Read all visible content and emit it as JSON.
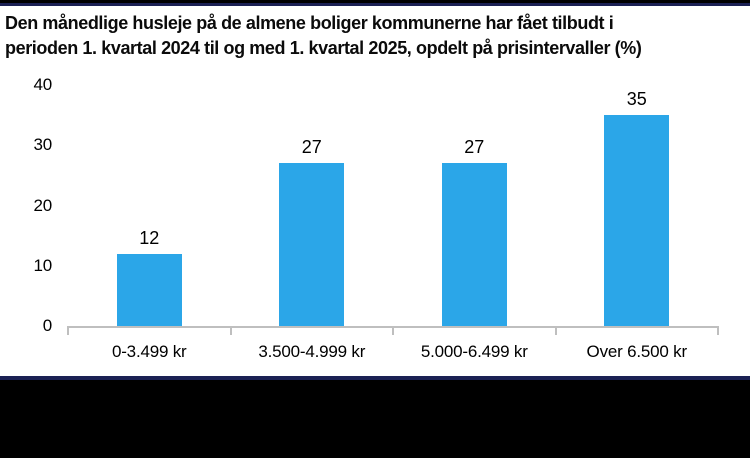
{
  "header": {
    "title_lines": [
      "Den månedlige husleje på de almene boliger kommunerne har fået tilbudt i",
      "perioden 1. kvartal 2024 til og med 1. kvartal 2025, opdelt på prisintervaller (%)"
    ]
  },
  "colors": {
    "bar": "#2ba6e8",
    "axis": "#bfbfbf",
    "navy_strip": "#1b2154",
    "black_strip": "#000000",
    "text": "#000000"
  },
  "chart_data": {
    "type": "bar",
    "title": "Den månedlige husleje på de almene boliger kommunerne har fået tilbudt i perioden 1. kvartal 2024 til og med 1. kvartal 2025, opdelt på prisintervaller (%)",
    "categories": [
      "0-3.499 kr",
      "3.500-4.999 kr",
      "5.000-6.499 kr",
      "Over 6.500 kr"
    ],
    "values": [
      12,
      27,
      27,
      35
    ],
    "xlabel": "",
    "ylabel": "",
    "ylim": [
      0,
      40
    ],
    "yticks": [
      0,
      10,
      20,
      30,
      40
    ],
    "grid": false,
    "data_labels": true,
    "legend": "none"
  }
}
